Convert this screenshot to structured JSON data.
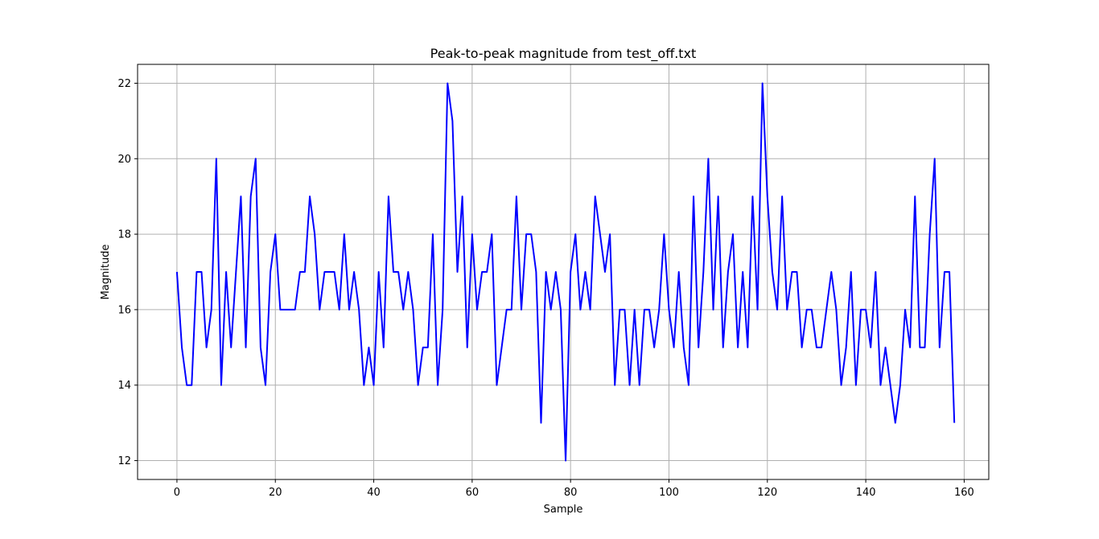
{
  "chart_data": {
    "type": "line",
    "title": "Peak-to-peak magnitude from test_off.txt",
    "xlabel": "Sample",
    "ylabel": "Magnitude",
    "xlim": [
      -8,
      165
    ],
    "ylim": [
      11.5,
      22.5
    ],
    "xticks": [
      0,
      20,
      40,
      60,
      80,
      100,
      120,
      140,
      160
    ],
    "yticks": [
      12,
      14,
      16,
      18,
      20,
      22
    ],
    "grid": true,
    "series": [
      {
        "color": "#0000ff",
        "x_start": 0,
        "values": [
          17,
          15,
          14,
          14,
          17,
          17,
          15,
          16,
          20,
          14,
          17,
          15,
          17,
          19,
          15,
          19,
          20,
          15,
          14,
          17,
          18,
          16,
          16,
          16,
          16,
          17,
          17,
          19,
          18,
          16,
          17,
          17,
          17,
          16,
          18,
          16,
          17,
          16,
          14,
          15,
          14,
          17,
          15,
          19,
          17,
          17,
          16,
          17,
          16,
          14,
          15,
          15,
          18,
          14,
          16,
          22,
          21,
          17,
          19,
          15,
          18,
          16,
          17,
          17,
          18,
          14,
          15,
          16,
          16,
          19,
          16,
          18,
          18,
          17,
          13,
          17,
          16,
          17,
          16,
          12,
          17,
          18,
          16,
          17,
          16,
          19,
          18,
          17,
          18,
          14,
          16,
          16,
          14,
          16,
          14,
          16,
          16,
          15,
          16,
          18,
          16,
          15,
          17,
          15,
          14,
          19,
          15,
          17,
          20,
          16,
          19,
          15,
          17,
          18,
          15,
          17,
          15,
          19,
          16,
          22,
          19,
          17,
          16,
          19,
          16,
          17,
          17,
          15,
          16,
          16,
          15,
          15,
          16,
          17,
          16,
          14,
          15,
          17,
          14,
          16,
          16,
          15,
          17,
          14,
          15,
          14,
          13,
          14,
          16,
          15,
          19,
          15,
          15,
          18,
          20,
          15,
          17,
          17,
          13
        ]
      }
    ]
  }
}
